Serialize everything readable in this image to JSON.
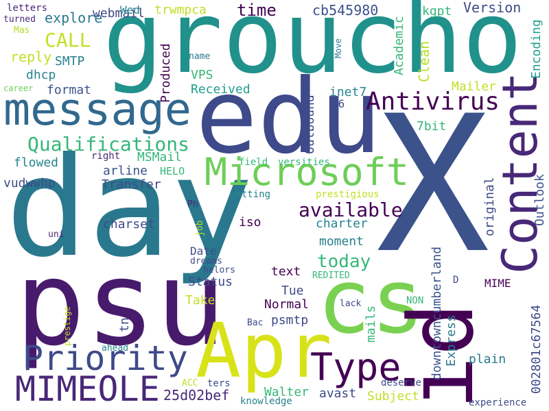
{
  "words": [
    "groucho",
    "day",
    "X",
    "edu",
    "psu",
    "cs",
    "Apr",
    "id",
    "Content",
    "message",
    "Microsoft",
    "Priority",
    "MIMEOLE",
    "Type",
    "Antivirus",
    "Qualifications",
    "available",
    "today",
    "CALL",
    "explore",
    "webmail",
    "Wed",
    "trwmpca",
    "time",
    "cb545980",
    "kgpt",
    "Version",
    "letters",
    "turned",
    "Mas",
    "reply",
    "SMTP",
    "dhcp",
    "format",
    "career",
    "Produced",
    "name",
    "VPS",
    "Received",
    "Move",
    "Academic",
    "Clean",
    "Encoding",
    "Mailer",
    "inet7",
    "Outbound",
    "V6",
    "7bit",
    "Outlook",
    "original",
    "plain",
    "MIME",
    "002801c67564",
    "experience",
    "D",
    "NON",
    "Express",
    "downtowncumberland",
    "MSMail",
    "flowed",
    "right",
    "arline",
    "HELO",
    "Transfer",
    "vudwwhp",
    "field",
    "versities",
    "prestigious",
    "getting",
    "Ph",
    "job",
    "iso",
    "charset",
    "charter",
    "moment",
    "uni",
    "Date",
    "dreams",
    "helors",
    "text",
    "REDITED",
    "Status",
    "Take",
    "Tue",
    "Normal",
    "lack",
    "tn",
    "prestige",
    "Bac",
    "psmtp",
    "mails",
    "ahead",
    "ACC",
    "ters",
    "25d02bef",
    "Walter",
    "avast",
    "Subject",
    "deserve",
    "knowledge"
  ]
}
